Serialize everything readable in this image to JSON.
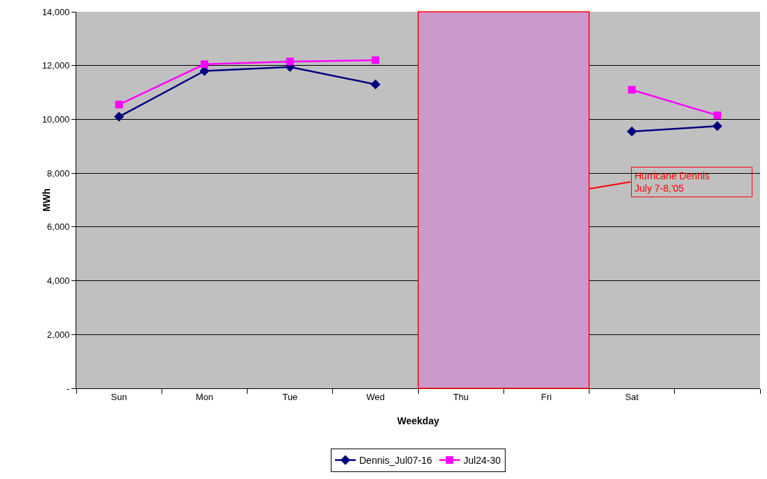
{
  "chart_data": {
    "type": "line",
    "xlabel": "Weekday",
    "ylabel": "MWh",
    "categories": [
      "Sun",
      "Mon",
      "Tue",
      "Wed",
      "Thu",
      "Fri",
      "Sat",
      null
    ],
    "series": [
      {
        "name": "Dennis_Jul07-16",
        "color": "#000080",
        "marker": "diamond",
        "values": [
          10100,
          11800,
          11950,
          11300,
          null,
          null,
          9550,
          9750
        ]
      },
      {
        "name": "Jul24-30",
        "color": "#ff00ff",
        "marker": "square",
        "values": [
          10550,
          12050,
          12150,
          12200,
          null,
          null,
          11100,
          10150
        ]
      }
    ],
    "ylim": [
      0,
      14000
    ],
    "yticks": [
      {
        "value": 0,
        "label": "-"
      },
      {
        "value": 2000,
        "label": "2,000"
      },
      {
        "value": 4000,
        "label": "4,000"
      },
      {
        "value": 6000,
        "label": "6,000"
      },
      {
        "value": 8000,
        "label": "8,000"
      },
      {
        "value": 10000,
        "label": "10,000"
      },
      {
        "value": 12000,
        "label": "12,000"
      },
      {
        "value": 14000,
        "label": "14,000"
      }
    ],
    "grid": "y",
    "legend": "bottom",
    "line_style": "solid",
    "bands": [
      {
        "axis": "x",
        "from": "Thu",
        "to": "Fri",
        "label": "Hurricane Dennis\nJuly 7-8,'05",
        "color": "#cc99cc"
      }
    ]
  }
}
